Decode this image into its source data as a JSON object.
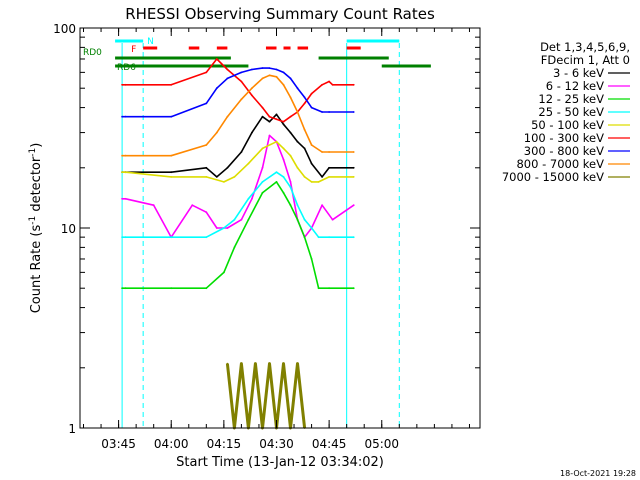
{
  "chart_data": {
    "type": "line",
    "title": "RHESSI Observing Summary Count Rates",
    "xlabel": "Start Time (13-Jan-12 03:34:02)",
    "ylabel": "Count Rate (s⁻¹ detector⁻¹)",
    "ylabel_base": "Count Rate (s",
    "ylabel_sup": "-1",
    "ylabel_mid": " detector",
    "ylabel_sup2": "-1",
    "ylabel_end": ")",
    "yscale": "log",
    "ylim": [
      1,
      100
    ],
    "xlim": [
      "03:34",
      "05:28"
    ],
    "x_ticks": [
      "03:45",
      "04:00",
      "04:15",
      "04:30",
      "04:45",
      "05:00"
    ],
    "x_tick_minutes": [
      225,
      240,
      255,
      270,
      285,
      300
    ],
    "y_tick_labels": [
      "1",
      "10",
      "100"
    ],
    "y_tick_values": [
      1,
      10,
      100
    ],
    "legend": {
      "placement": "right",
      "header": [
        "Det 1,3,4,5,6,9,",
        "FDecim 1, Att 0"
      ]
    },
    "series": [
      {
        "name": "3 - 6 keV",
        "color": "#000000",
        "x": [
          226,
          227,
          240,
          250,
          253,
          256,
          260,
          263,
          266,
          268,
          270,
          272,
          274,
          276,
          278,
          280,
          283,
          285,
          292
        ],
        "y": [
          19,
          19,
          19,
          20,
          18,
          20,
          24,
          30,
          36,
          34,
          37,
          33,
          30,
          27,
          25,
          21,
          18,
          20,
          20
        ]
      },
      {
        "name": "6 - 12 keV",
        "color": "#ff00ff",
        "x": [
          226,
          227,
          235,
          240,
          246,
          250,
          253,
          256,
          260,
          263,
          266,
          268,
          270,
          272,
          274,
          276,
          278,
          280,
          283,
          286,
          292
        ],
        "y": [
          14,
          14,
          13,
          9,
          13,
          12,
          10,
          10,
          11,
          14,
          20,
          29,
          27,
          22,
          17,
          11,
          9,
          10,
          13,
          11,
          13
        ]
      },
      {
        "name": "12 - 25 keV",
        "color": "#00dd00",
        "x": [
          226,
          227,
          240,
          250,
          255,
          258,
          262,
          266,
          270,
          272,
          274,
          276,
          278,
          280,
          282,
          285,
          292
        ],
        "y": [
          5,
          5,
          5,
          5,
          6,
          8,
          11,
          15,
          17,
          15,
          13,
          11,
          9,
          7,
          5,
          5,
          5
        ]
      },
      {
        "name": "25 - 50 keV",
        "color": "#00ffff",
        "x": [
          226,
          227,
          240,
          250,
          255,
          258,
          262,
          266,
          270,
          272,
          274,
          276,
          278,
          280,
          282,
          285,
          292
        ],
        "y": [
          9,
          9,
          9,
          9,
          10,
          11,
          14,
          17,
          19,
          18,
          16,
          13,
          11,
          10,
          9,
          9,
          9
        ]
      },
      {
        "name": "50 - 100 keV",
        "color": "#dddd00",
        "x": [
          226,
          227,
          240,
          250,
          255,
          258,
          262,
          266,
          270,
          272,
          274,
          276,
          278,
          280,
          282,
          285,
          292
        ],
        "y": [
          19,
          19,
          18,
          18,
          17,
          18,
          21,
          25,
          27,
          25,
          23,
          20,
          18,
          17,
          17,
          18,
          18
        ]
      },
      {
        "name": "100 - 300 keV",
        "color": "#ff0000",
        "x": [
          226,
          227,
          240,
          250,
          253,
          256,
          260,
          263,
          266,
          268,
          270,
          272,
          274,
          276,
          278,
          280,
          283,
          285,
          286,
          292
        ],
        "y": [
          52,
          52,
          52,
          60,
          70,
          62,
          54,
          46,
          40,
          36,
          35,
          34,
          36,
          38,
          42,
          47,
          52,
          54,
          52,
          52
        ]
      },
      {
        "name": "300 - 800 keV",
        "color": "#0000ff",
        "x": [
          226,
          227,
          240,
          250,
          253,
          256,
          260,
          263,
          266,
          268,
          270,
          272,
          274,
          276,
          278,
          280,
          283,
          285,
          292
        ],
        "y": [
          36,
          36,
          36,
          42,
          50,
          56,
          60,
          62,
          63,
          63,
          62,
          60,
          56,
          50,
          45,
          40,
          38,
          38,
          38
        ]
      },
      {
        "name": "800 - 7000 keV",
        "color": "#ff8800",
        "x": [
          226,
          227,
          240,
          250,
          253,
          256,
          260,
          263,
          266,
          268,
          270,
          272,
          274,
          276,
          278,
          280,
          283,
          285,
          292
        ],
        "y": [
          23,
          23,
          23,
          26,
          30,
          36,
          44,
          50,
          56,
          58,
          57,
          52,
          45,
          38,
          31,
          26,
          24,
          24,
          24
        ]
      },
      {
        "name": "7000 - 15000 keV",
        "color": "#808000",
        "x": [
          256,
          258,
          260,
          262,
          264,
          266,
          268,
          270,
          272,
          274,
          276,
          278
        ],
        "y": [
          2.1,
          1.0,
          2.1,
          1.0,
          2.1,
          1.0,
          2.1,
          1.0,
          2.1,
          1.0,
          2.1,
          1.0
        ]
      }
    ],
    "annotations": {
      "labels": [
        "RD0",
        "RD6",
        "N",
        "F"
      ],
      "night_color": "#00ffff",
      "flare_color": "#ff0000",
      "data_color": "#008000",
      "night_spans": [
        [
          224,
          232
        ],
        [
          290,
          305
        ]
      ],
      "flare_spans": [
        [
          232,
          236
        ],
        [
          245,
          248
        ],
        [
          253,
          256
        ],
        [
          267,
          270
        ],
        [
          272,
          274
        ],
        [
          276,
          279
        ],
        [
          290,
          294
        ]
      ],
      "rd0_spans": [
        [
          224,
          257
        ],
        [
          282,
          302
        ]
      ],
      "rd6_spans": [
        [
          224,
          262
        ],
        [
          300,
          314
        ]
      ],
      "vlines_dashed": [
        232,
        305
      ],
      "vlines_solid": [
        226,
        290
      ]
    },
    "grid": false,
    "timestamp": "18-Oct-2021 19:28"
  }
}
